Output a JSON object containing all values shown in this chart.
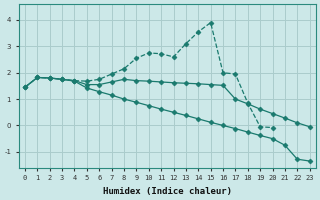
{
  "xlabel": "Humidex (Indice chaleur)",
  "bg_color": "#cce8e8",
  "grid_color": "#aacccc",
  "line_color": "#1a7a6e",
  "xlim": [
    -0.5,
    23.5
  ],
  "ylim": [
    -1.6,
    4.6
  ],
  "yticks": [
    -1,
    0,
    1,
    2,
    3,
    4
  ],
  "xticks": [
    0,
    1,
    2,
    3,
    4,
    5,
    6,
    7,
    8,
    9,
    10,
    11,
    12,
    13,
    14,
    15,
    16,
    17,
    18,
    19,
    20,
    21,
    22,
    23
  ],
  "series": [
    {
      "x": [
        0,
        1,
        2,
        3,
        4,
        5,
        6,
        7,
        8,
        9,
        10,
        11,
        12,
        13,
        14,
        15,
        16,
        17,
        18,
        19,
        20
      ],
      "y": [
        1.45,
        1.82,
        1.8,
        1.75,
        1.7,
        1.68,
        1.75,
        1.95,
        2.15,
        2.55,
        2.75,
        2.72,
        2.6,
        3.1,
        3.55,
        3.9,
        2.0,
        1.95,
        0.85,
        -0.05,
        -0.08
      ],
      "marker": "D",
      "markersize": 2.5,
      "linestyle": "--",
      "linewidth": 0.9
    },
    {
      "x": [
        0,
        1,
        2,
        3,
        4,
        5,
        6,
        7,
        8,
        9,
        10,
        11,
        12,
        13,
        14,
        15,
        16,
        17,
        18,
        19,
        20,
        21,
        22,
        23
      ],
      "y": [
        1.45,
        1.82,
        1.8,
        1.75,
        1.7,
        1.55,
        1.55,
        1.65,
        1.75,
        1.7,
        1.68,
        1.65,
        1.62,
        1.6,
        1.58,
        1.55,
        1.52,
        1.0,
        0.82,
        0.62,
        0.45,
        0.28,
        0.1,
        -0.05
      ],
      "marker": "D",
      "markersize": 2.5,
      "linestyle": "-",
      "linewidth": 0.9
    },
    {
      "x": [
        0,
        1,
        2,
        3,
        4,
        5,
        6,
        7,
        8,
        9,
        10,
        11,
        12,
        13,
        14,
        15,
        16,
        17,
        18,
        19,
        20,
        21,
        22,
        23
      ],
      "y": [
        1.45,
        1.82,
        1.8,
        1.75,
        1.68,
        1.42,
        1.28,
        1.15,
        1.0,
        0.88,
        0.75,
        0.62,
        0.5,
        0.38,
        0.25,
        0.12,
        0.0,
        -0.12,
        -0.25,
        -0.38,
        -0.5,
        -0.75,
        -1.28,
        -1.35
      ],
      "marker": "D",
      "markersize": 2.5,
      "linestyle": "-",
      "linewidth": 0.9
    }
  ]
}
